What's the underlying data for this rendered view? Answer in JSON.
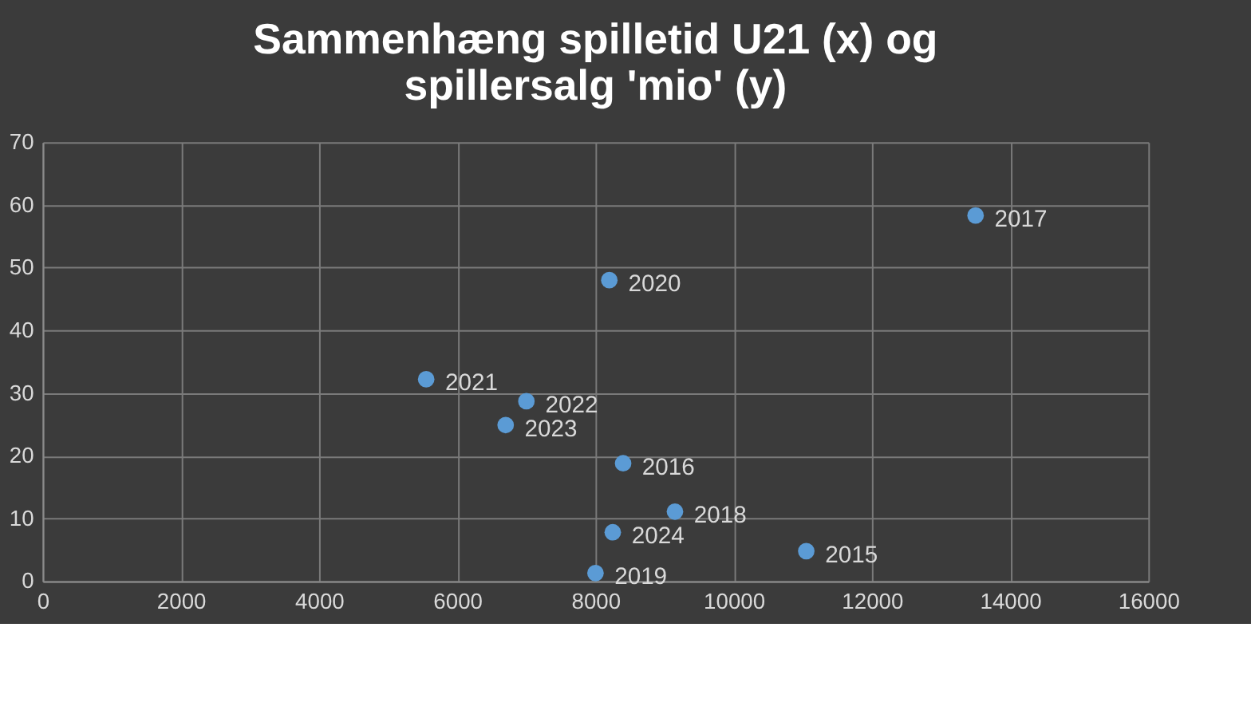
{
  "chart_data": {
    "type": "scatter",
    "title": [
      "Sammenhæng spilletid U21 (x) og",
      "spillersalg 'mio' (y)"
    ],
    "x": [
      13500,
      8200,
      5550,
      7000,
      6700,
      8400,
      9150,
      8250,
      11050,
      8000
    ],
    "series": [
      {
        "color": "#5b9bd5",
        "values": [
          58.3,
          48,
          32.2,
          28.7,
          24.9,
          18.8,
          11.1,
          7.8,
          4.8,
          1.3
        ]
      }
    ],
    "annotations": [
      {
        "text": "2017",
        "x": 13500,
        "y": 58.3
      },
      {
        "text": "2020",
        "x": 8200,
        "y": 48
      },
      {
        "text": "2021",
        "x": 5550,
        "y": 32.2
      },
      {
        "text": "2022",
        "x": 7000,
        "y": 28.7
      },
      {
        "text": "2023",
        "x": 6700,
        "y": 24.9
      },
      {
        "text": "2016",
        "x": 8400,
        "y": 18.8
      },
      {
        "text": "2018",
        "x": 9150,
        "y": 11.1
      },
      {
        "text": "2024",
        "x": 8250,
        "y": 7.8
      },
      {
        "text": "2015",
        "x": 11050,
        "y": 4.8
      },
      {
        "text": "2019",
        "x": 8000,
        "y": 1.3
      }
    ],
    "xlim": [
      0,
      16000
    ],
    "xticks": [
      0,
      2000,
      4000,
      6000,
      8000,
      10000,
      12000,
      14000,
      16000
    ],
    "ylim": [
      0,
      70
    ],
    "yticks": [
      0,
      10,
      20,
      30,
      40,
      50,
      60,
      70
    ],
    "grid": true,
    "marker": "circle"
  }
}
